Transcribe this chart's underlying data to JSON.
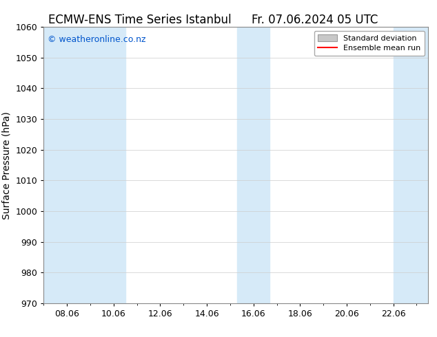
{
  "title_left": "ECMW-ENS Time Series Istanbul",
  "title_right": "Fr. 07.06.2024 05 UTC",
  "ylabel": "Surface Pressure (hPa)",
  "ylim": [
    970,
    1060
  ],
  "yticks": [
    970,
    980,
    990,
    1000,
    1010,
    1020,
    1030,
    1040,
    1050,
    1060
  ],
  "xtick_positions": [
    8,
    10,
    12,
    14,
    16,
    18,
    20,
    22
  ],
  "xtick_labels": [
    "08.06",
    "10.06",
    "12.06",
    "14.06",
    "16.06",
    "18.06",
    "20.06",
    "22.06"
  ],
  "xlim": [
    7.0,
    23.5
  ],
  "watermark": "© weatheronline.co.nz",
  "watermark_color": "#0055cc",
  "shaded_bands": [
    {
      "x_start": 7.0,
      "x_end": 10.5
    },
    {
      "x_start": 15.3,
      "x_end": 16.7
    },
    {
      "x_start": 22.0,
      "x_end": 23.5
    }
  ],
  "shade_color": "#d6eaf8",
  "background_color": "#ffffff",
  "ensemble_mean_color": "#ff0000",
  "std_dev_color": "#c8c8c8",
  "title_fontsize": 12,
  "axis_label_fontsize": 10,
  "tick_fontsize": 9,
  "watermark_fontsize": 9,
  "legend_fontsize": 8
}
